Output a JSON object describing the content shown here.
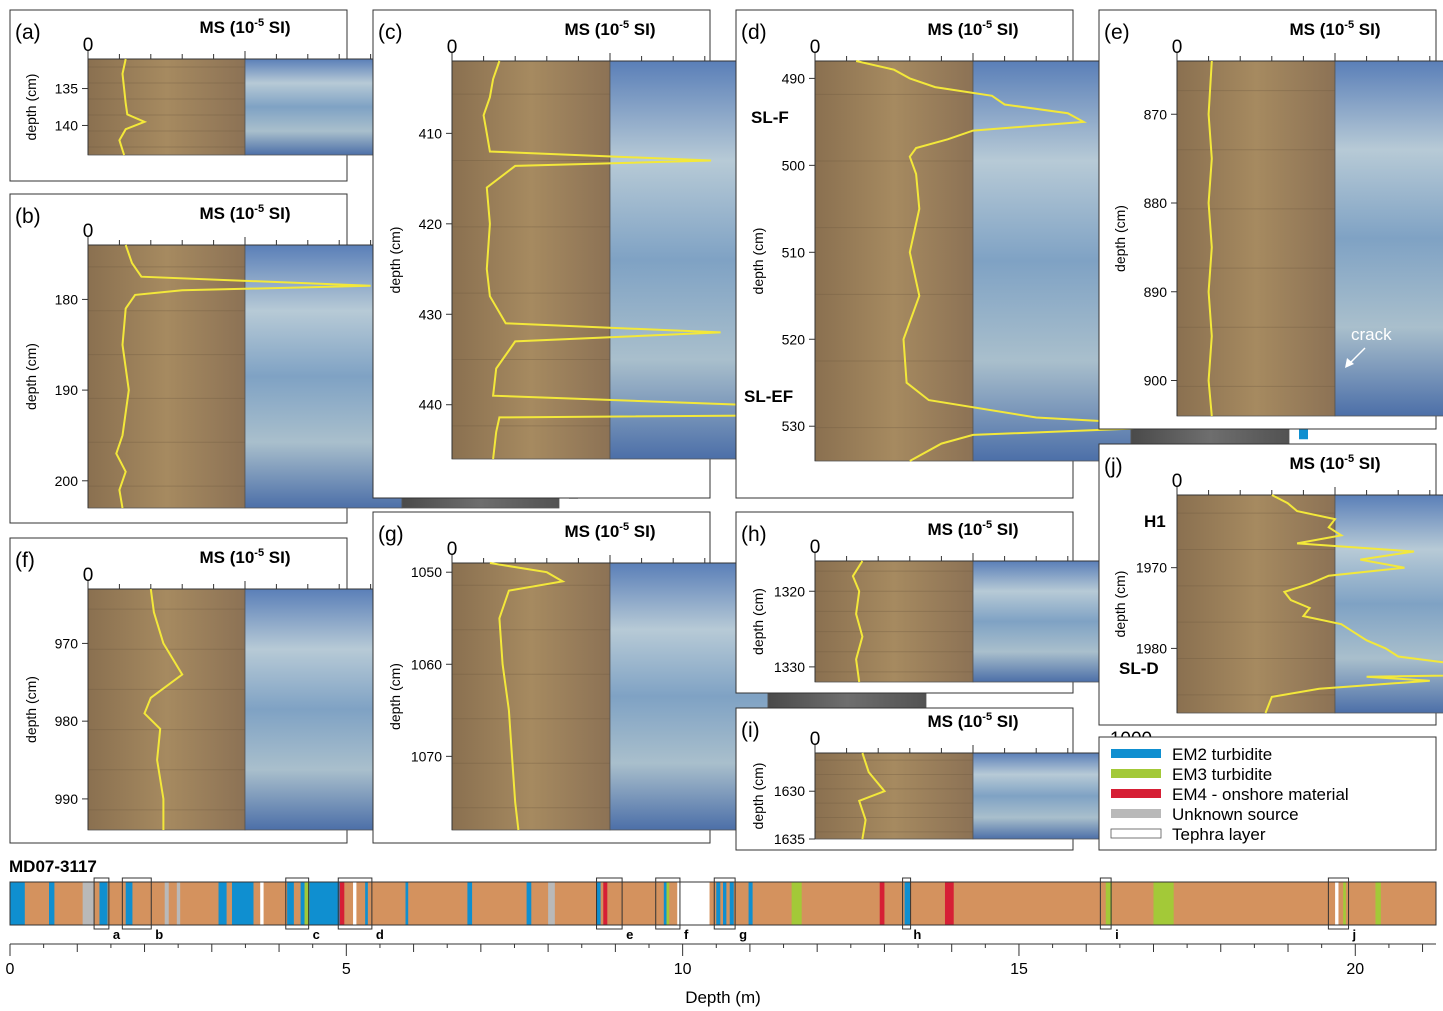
{
  "figure": {
    "ms_axis_label": "MS (10",
    "ms_axis_exp": "-5",
    "ms_axis_unit": "SI)",
    "ms_min_label": "0",
    "ms_max_label": "1000",
    "depth_axis_label": "depth (cm)"
  },
  "panels": [
    {
      "id": "a",
      "label": "(a)",
      "depth_min": 131,
      "depth_max": 144,
      "ticks": [
        135,
        140
      ],
      "bars": [
        {
          "type": "em2",
          "from": 133,
          "to": 140
        }
      ],
      "ms": [
        [
          131,
          120
        ],
        [
          133,
          110
        ],
        [
          135,
          115
        ],
        [
          137,
          120
        ],
        [
          138.5,
          125
        ],
        [
          139.5,
          180
        ],
        [
          140.5,
          120
        ],
        [
          142,
          100
        ],
        [
          144,
          115
        ]
      ]
    },
    {
      "id": "b",
      "label": "(b)",
      "depth_min": 174,
      "depth_max": 203,
      "ticks": [
        180,
        190,
        200
      ],
      "bars": [
        {
          "type": "em2",
          "from": 175,
          "to": 181
        },
        {
          "type": "unknown",
          "from": 197.5,
          "to": 202
        }
      ],
      "ms": [
        [
          174,
          120
        ],
        [
          176,
          140
        ],
        [
          177.5,
          170
        ],
        [
          178.5,
          900
        ],
        [
          179,
          300
        ],
        [
          179.5,
          150
        ],
        [
          181,
          120
        ],
        [
          185,
          110
        ],
        [
          190,
          130
        ],
        [
          195,
          110
        ],
        [
          197,
          90
        ],
        [
          199,
          120
        ],
        [
          201,
          100
        ],
        [
          203,
          110
        ]
      ]
    },
    {
      "id": "c",
      "label": "(c)",
      "depth_min": 402,
      "depth_max": 446,
      "ticks": [
        410,
        420,
        430,
        440
      ],
      "bars": [
        {
          "type": "em2",
          "from": 408,
          "to": 416
        },
        {
          "type": "em3",
          "from": 428,
          "to": 434
        }
      ],
      "ms": [
        [
          402,
          150
        ],
        [
          404,
          130
        ],
        [
          406,
          120
        ],
        [
          408,
          100
        ],
        [
          410,
          110
        ],
        [
          412,
          120
        ],
        [
          413,
          820
        ],
        [
          413.6,
          200
        ],
        [
          416,
          110
        ],
        [
          420,
          120
        ],
        [
          425,
          110
        ],
        [
          428,
          120
        ],
        [
          431,
          170
        ],
        [
          432,
          850
        ],
        [
          433,
          200
        ],
        [
          434,
          180
        ],
        [
          436,
          140
        ],
        [
          439,
          130
        ],
        [
          441,
          1700
        ],
        [
          441.4,
          150
        ],
        [
          443,
          140
        ],
        [
          446,
          130
        ]
      ]
    },
    {
      "id": "d",
      "label": "(d)",
      "depth_min": 488,
      "depth_max": 534,
      "ticks": [
        490,
        500,
        510,
        520,
        530
      ],
      "bars": [
        {
          "type": "em2em4",
          "from": 488,
          "to": 497.5
        },
        {
          "type": "tephra",
          "from": 511,
          "to": 515.5
        },
        {
          "type": "em2",
          "from": 527,
          "to": 531.5
        }
      ],
      "ms": [
        [
          488,
          130
        ],
        [
          489,
          250
        ],
        [
          490,
          300
        ],
        [
          491,
          380
        ],
        [
          492,
          560
        ],
        [
          493,
          600
        ],
        [
          494,
          800
        ],
        [
          495,
          850
        ],
        [
          496,
          500
        ],
        [
          497,
          420
        ],
        [
          498,
          320
        ],
        [
          499,
          300
        ],
        [
          501,
          320
        ],
        [
          505,
          330
        ],
        [
          510,
          300
        ],
        [
          515,
          330
        ],
        [
          520,
          280
        ],
        [
          525,
          290
        ],
        [
          527,
          360
        ],
        [
          529,
          700
        ],
        [
          530,
          1200
        ],
        [
          531,
          500
        ],
        [
          532,
          400
        ],
        [
          534,
          300
        ]
      ]
    },
    {
      "id": "e",
      "label": "(e)",
      "depth_min": 864,
      "depth_max": 904,
      "ticks": [
        870,
        880,
        890,
        900
      ],
      "bars": [
        {
          "type": "em4",
          "from": 865,
          "to": 872
        },
        {
          "type": "em2",
          "from": 897,
          "to": 899.5
        }
      ],
      "ms": [
        [
          864,
          110
        ],
        [
          870,
          100
        ],
        [
          875,
          110
        ],
        [
          880,
          100
        ],
        [
          885,
          110
        ],
        [
          890,
          100
        ],
        [
          895,
          110
        ],
        [
          900,
          100
        ],
        [
          904,
          110
        ]
      ]
    },
    {
      "id": "f",
      "label": "(f)",
      "depth_min": 963,
      "depth_max": 994,
      "ticks": [
        970,
        980,
        990
      ],
      "bars": [
        {
          "type": "em3",
          "from": 969.5,
          "to": 975.5
        }
      ],
      "ms": [
        [
          963,
          200
        ],
        [
          966,
          210
        ],
        [
          970,
          240
        ],
        [
          974,
          300
        ],
        [
          977,
          200
        ],
        [
          979,
          180
        ],
        [
          981,
          230
        ],
        [
          985,
          220
        ],
        [
          990,
          240
        ],
        [
          994,
          240
        ]
      ]
    },
    {
      "id": "g",
      "label": "(g)",
      "depth_min": 1049,
      "depth_max": 1078,
      "ticks": [
        1050,
        1060,
        1070
      ],
      "bars": [
        {
          "type": "em2",
          "from": 1050,
          "to": 1056.5
        },
        {
          "type": "tephra",
          "from": 1071,
          "to": 1077
        }
      ],
      "ms": [
        [
          1049,
          120
        ],
        [
          1050,
          300
        ],
        [
          1051,
          350
        ],
        [
          1052,
          180
        ],
        [
          1055,
          150
        ],
        [
          1060,
          160
        ],
        [
          1065,
          180
        ],
        [
          1070,
          190
        ],
        [
          1075,
          200
        ],
        [
          1078,
          210
        ]
      ]
    },
    {
      "id": "h",
      "label": "(h)",
      "depth_min": 1316,
      "depth_max": 1332,
      "ticks": [
        1320,
        1330
      ],
      "bars": [
        {
          "type": "em2",
          "from": 1320.5,
          "to": 1330.5
        }
      ],
      "ms": [
        [
          1316,
          150
        ],
        [
          1318,
          120
        ],
        [
          1320,
          140
        ],
        [
          1323,
          130
        ],
        [
          1326,
          150
        ],
        [
          1329,
          130
        ],
        [
          1332,
          140
        ]
      ]
    },
    {
      "id": "i",
      "label": "(i)",
      "depth_min": 1626,
      "depth_max": 1635,
      "ticks": [
        1630,
        1635
      ],
      "bars": [
        {
          "type": "em3",
          "from": 1628,
          "to": 1632.5
        }
      ],
      "ms": [
        [
          1626,
          150
        ],
        [
          1628,
          170
        ],
        [
          1630,
          220
        ],
        [
          1631,
          140
        ],
        [
          1633,
          160
        ],
        [
          1635,
          150
        ]
      ]
    },
    {
      "id": "j",
      "label": "(j)",
      "depth_min": 1961,
      "depth_max": 1988,
      "ticks": [
        1970,
        1980
      ],
      "bars": [
        {
          "type": "tephra",
          "from": 1962,
          "to": 1971
        },
        {
          "type": "em3em4",
          "from": 1972.5,
          "to": 1985.5
        }
      ],
      "ms": [
        [
          1961,
          300
        ],
        [
          1962,
          350
        ],
        [
          1963,
          380
        ],
        [
          1964,
          500
        ],
        [
          1965,
          480
        ],
        [
          1966,
          520
        ],
        [
          1967,
          380
        ],
        [
          1968,
          750
        ],
        [
          1969,
          580
        ],
        [
          1970,
          720
        ],
        [
          1971,
          480
        ],
        [
          1972,
          420
        ],
        [
          1973,
          340
        ],
        [
          1974,
          360
        ],
        [
          1975,
          420
        ],
        [
          1976,
          400
        ],
        [
          1977,
          520
        ],
        [
          1978,
          560
        ],
        [
          1979,
          600
        ],
        [
          1980,
          660
        ],
        [
          1981,
          700
        ],
        [
          1982,
          900
        ],
        [
          1983,
          1500
        ],
        [
          1983.5,
          600
        ],
        [
          1984,
          800
        ],
        [
          1985,
          450
        ],
        [
          1986,
          300
        ],
        [
          1988,
          280
        ]
      ]
    }
  ],
  "annotations": {
    "d_sl_f": "SL-F",
    "d_sl_ef": "SL-EF",
    "e_crack": "crack",
    "j_h1": "H1",
    "j_sl_d": "SL-D"
  },
  "legend": [
    {
      "type": "em2",
      "label": "EM2 turbidite",
      "color": "#0f8fd0"
    },
    {
      "type": "em3",
      "label": "EM3 turbidite",
      "color": "#a3c938"
    },
    {
      "type": "em4",
      "label": "EM4 - onshore material",
      "color": "#d61f35"
    },
    {
      "type": "unknown",
      "label": "Unknown source",
      "color": "#b9b9b9"
    },
    {
      "type": "tephra",
      "label": "Tephra layer",
      "color": "#ffffff"
    }
  ],
  "core": {
    "name": "MD07-3117",
    "axis_label": "Depth (m)",
    "axis_ticks": [
      "0",
      "5",
      "10",
      "15",
      "20"
    ],
    "min_m": 0,
    "max_m": 21.2,
    "base_color": "#d4925e",
    "layers": [
      {
        "type": "em2",
        "from": 0.0,
        "to": 0.22
      },
      {
        "type": "em2",
        "from": 0.58,
        "to": 0.66
      },
      {
        "type": "unknown",
        "from": 1.08,
        "to": 1.25
      },
      {
        "type": "em2",
        "from": 1.33,
        "to": 1.45
      },
      {
        "type": "em2",
        "from": 1.72,
        "to": 1.82
      },
      {
        "type": "unknown",
        "from": 2.3,
        "to": 2.36
      },
      {
        "type": "unknown",
        "from": 2.48,
        "to": 2.53
      },
      {
        "type": "em2",
        "from": 3.1,
        "to": 3.22
      },
      {
        "type": "em2",
        "from": 3.3,
        "to": 3.62
      },
      {
        "type": "tephra",
        "from": 3.72,
        "to": 3.77
      },
      {
        "type": "em2",
        "from": 4.12,
        "to": 4.22
      },
      {
        "type": "em2",
        "from": 4.32,
        "to": 4.38
      },
      {
        "type": "em3",
        "from": 4.38,
        "to": 4.45
      },
      {
        "type": "em2",
        "from": 4.45,
        "to": 4.9
      },
      {
        "type": "em4",
        "from": 4.9,
        "to": 4.97
      },
      {
        "type": "tephra",
        "from": 5.1,
        "to": 5.15
      },
      {
        "type": "em2",
        "from": 5.28,
        "to": 5.32
      },
      {
        "type": "em2",
        "from": 5.88,
        "to": 5.92
      },
      {
        "type": "em2",
        "from": 6.8,
        "to": 6.87
      },
      {
        "type": "em2",
        "from": 7.68,
        "to": 7.75
      },
      {
        "type": "unknown",
        "from": 8.0,
        "to": 8.1
      },
      {
        "type": "em2",
        "from": 8.72,
        "to": 8.78
      },
      {
        "type": "em4",
        "from": 8.82,
        "to": 8.88
      },
      {
        "type": "em2",
        "from": 9.72,
        "to": 9.76
      },
      {
        "type": "em3",
        "from": 9.76,
        "to": 9.8
      },
      {
        "type": "tephra",
        "from": 9.92,
        "to": 10.4
      },
      {
        "type": "em2",
        "from": 10.5,
        "to": 10.56
      },
      {
        "type": "em2",
        "from": 10.6,
        "to": 10.65
      },
      {
        "type": "em2",
        "from": 10.7,
        "to": 10.76
      },
      {
        "type": "em2",
        "from": 10.98,
        "to": 11.04
      },
      {
        "type": "em3",
        "from": 11.62,
        "to": 11.77
      },
      {
        "type": "em4",
        "from": 12.93,
        "to": 13.0
      },
      {
        "type": "em2",
        "from": 13.3,
        "to": 13.38
      },
      {
        "type": "em4",
        "from": 13.9,
        "to": 14.03
      },
      {
        "type": "em3",
        "from": 16.29,
        "to": 16.38
      },
      {
        "type": "em3",
        "from": 17.0,
        "to": 17.3
      },
      {
        "type": "tephra",
        "from": 19.7,
        "to": 19.75
      },
      {
        "type": "em3",
        "from": 19.82,
        "to": 19.86
      },
      {
        "type": "em3",
        "from": 20.3,
        "to": 20.38
      }
    ],
    "windows": [
      {
        "label": "a",
        "from": 1.25,
        "to": 1.47
      },
      {
        "label": "b",
        "from": 1.67,
        "to": 2.1
      },
      {
        "label": "c",
        "from": 4.1,
        "to": 4.44
      },
      {
        "label": "d",
        "from": 4.88,
        "to": 5.38
      },
      {
        "label": "e",
        "from": 8.72,
        "to": 9.1
      },
      {
        "label": "f",
        "from": 9.6,
        "to": 9.96
      },
      {
        "label": "g",
        "from": 10.47,
        "to": 10.78
      },
      {
        "label": "h",
        "from": 13.27,
        "to": 13.37
      },
      {
        "label": "i",
        "from": 16.21,
        "to": 16.37
      },
      {
        "label": "j",
        "from": 19.6,
        "to": 19.9
      }
    ]
  }
}
